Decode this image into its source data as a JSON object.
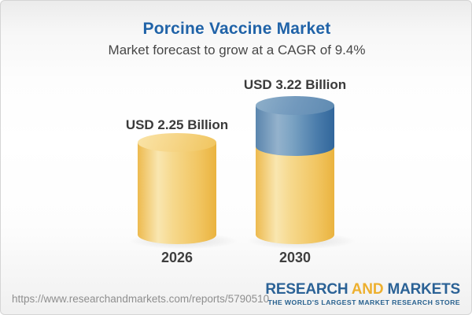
{
  "header": {
    "title": "Porcine Vaccine Market",
    "subtitle": "Market forecast to grow at a CAGR of 9.4%"
  },
  "chart_data": {
    "type": "bar",
    "subtype": "3d-cylinder",
    "title": "Porcine Vaccine Market",
    "subtitle": "Market forecast to grow at a CAGR of 9.4%",
    "cagr_percent": 9.4,
    "unit": "USD Billion",
    "categories": [
      "2026",
      "2030"
    ],
    "values": [
      2.25,
      3.22
    ],
    "bars": [
      {
        "year": "2026",
        "value": 2.25,
        "label": "USD 2.25 Billion",
        "segments": [
          {
            "name": "base",
            "color": "#f5cd72"
          }
        ]
      },
      {
        "year": "2030",
        "value": 3.22,
        "label": "USD 3.22 Billion",
        "segments": [
          {
            "name": "base",
            "color": "#f5cd72"
          },
          {
            "name": "growth",
            "color": "#4a7cab"
          }
        ]
      }
    ],
    "legend": "none",
    "grid": false,
    "axes": "none"
  },
  "colors": {
    "title_blue": "#2063a8",
    "bar_yellow": "#f5cd72",
    "bar_blue": "#4a7cab",
    "logo_blue": "#2b6296",
    "logo_orange": "#edb02f"
  },
  "footer": {
    "url": "https://www.researchandmarkets.com/reports/5790510",
    "logo": {
      "word1": "RESEARCH",
      "word2": "AND",
      "word3": "MARKETS",
      "tagline": "THE WORLD'S LARGEST MARKET RESEARCH STORE"
    }
  }
}
